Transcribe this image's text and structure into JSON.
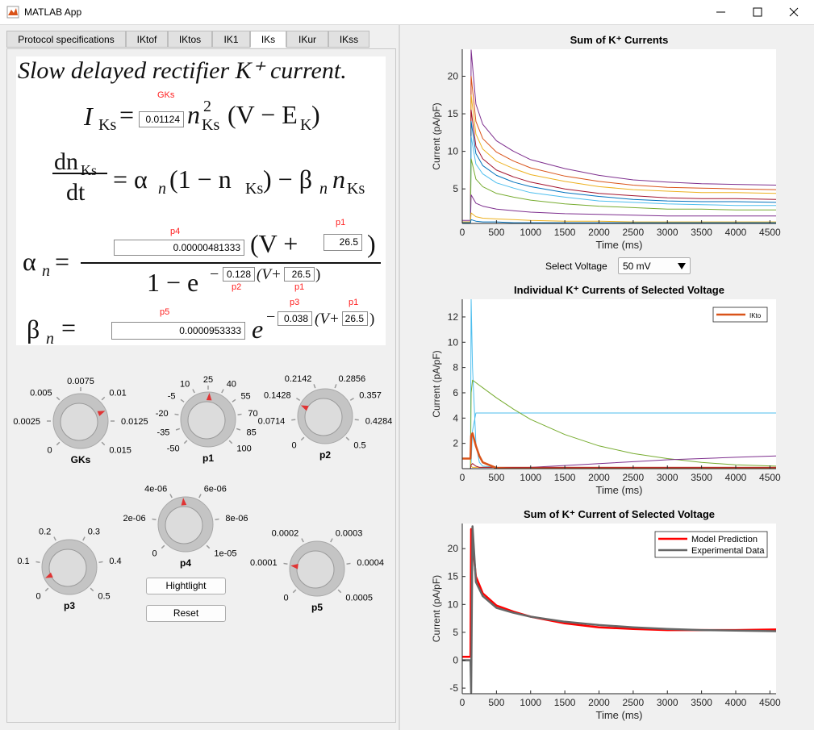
{
  "window": {
    "title": "MATLAB App"
  },
  "tabs": {
    "items": [
      "Protocol specifications",
      "IKtof",
      "IKtos",
      "IK1",
      "IKs",
      "IKur",
      "IKss"
    ],
    "selected": 4
  },
  "equations": {
    "heading": "Slow delayed rectifier K⁺ current.",
    "i_ks": [
      "I",
      "Ks",
      "=",
      "n",
      "2",
      "Ks",
      "(V − E",
      "K",
      ")"
    ],
    "dn_dt": [
      "dn",
      "Ks",
      "dt",
      "= α",
      "n",
      "(1 − n",
      "Ks",
      ") − β",
      "n",
      "n",
      "Ks"
    ],
    "alpha": [
      "α",
      "n",
      "=",
      "(V +",
      ")",
      "1 − e",
      "−",
      "(V+",
      ")"
    ],
    "beta": [
      "β",
      "n",
      "=",
      "e",
      "−",
      "(V+",
      ")"
    ]
  },
  "params": [
    {
      "name": "GKs",
      "value": 0.01124,
      "lim": [
        0,
        0.015
      ],
      "ticks": [
        0,
        0.0025,
        0.005,
        0.0075,
        0.01,
        0.0125,
        0.015
      ]
    },
    {
      "name": "p1",
      "value": 26.5,
      "lim": [
        -50,
        100
      ],
      "ticks": [
        -50,
        -35,
        -20,
        -5,
        10,
        25,
        40,
        55,
        70,
        85,
        100
      ]
    },
    {
      "name": "p2",
      "value": 0.128,
      "lim": [
        0,
        0.5
      ],
      "ticks": [
        0,
        0.0714,
        0.1428,
        0.2142,
        0.2856,
        0.357,
        0.4284,
        0.5
      ]
    },
    {
      "name": "p3",
      "value": 0.038,
      "lim": [
        0,
        0.5
      ],
      "ticks": [
        0,
        0.1,
        0.2,
        0.3,
        0.4,
        0.5
      ]
    },
    {
      "name": "p4",
      "value": 4.81333e-06,
      "lim": [
        0,
        1e-05
      ],
      "ticks": [
        0,
        {
          "value": 2e-06,
          "label": "2e-06"
        },
        {
          "value": 4e-06,
          "label": "4e-06"
        },
        {
          "value": 6e-06,
          "label": "6e-06"
        },
        {
          "value": 8e-06,
          "label": "8e-06"
        },
        {
          "value": 1e-05,
          "label": "1e-05"
        }
      ]
    },
    {
      "name": "p5",
      "value": 9.53333e-05,
      "lim": [
        0,
        0.0005
      ],
      "ticks": [
        0,
        0.0001,
        0.0002,
        0.0003,
        0.0004,
        0.0005
      ]
    }
  ],
  "buttons": [
    "Hightlight",
    "Reset"
  ],
  "select": {
    "label": "Select Voltage",
    "value": "50 mV"
  },
  "chart_data": [
    {
      "type": "line",
      "title": "Sum of K⁺ Currents",
      "xlabel": "Time (ms)",
      "ylabel": "Current (pA/pF)",
      "x": [
        0,
        120,
        130,
        200,
        300,
        500,
        750,
        1000,
        1500,
        2000,
        2500,
        3000,
        3500,
        4000,
        4590
      ],
      "xlim": [
        0,
        4590
      ],
      "xticks": [
        0,
        500,
        1000,
        1500,
        2000,
        2500,
        3000,
        3500,
        4000,
        4500
      ],
      "ylim": [
        0.4,
        23.6
      ],
      "yticks": [
        5,
        10,
        15,
        20
      ],
      "series": [
        {
          "color": "#7E2F8E",
          "values": [
            0.8,
            0.8,
            23.5,
            16.3,
            13.6,
            11.4,
            10.0,
            8.9,
            7.7,
            6.8,
            6.2,
            5.9,
            5.7,
            5.6,
            5.5
          ]
        },
        {
          "color": "#D95319",
          "values": [
            0.6,
            0.6,
            20,
            14.0,
            11.7,
            9.9,
            8.7,
            7.8,
            6.7,
            6.0,
            5.5,
            5.2,
            5.1,
            5.0,
            4.9
          ]
        },
        {
          "color": "#EDB120",
          "values": [
            0.6,
            0.6,
            17.5,
            12.3,
            10.3,
            8.7,
            7.7,
            6.9,
            6.0,
            5.3,
            4.9,
            4.7,
            4.5,
            4.5,
            4.4
          ]
        },
        {
          "color": "#A2142F",
          "values": [
            0.6,
            0.6,
            15.5,
            10.7,
            9.0,
            7.5,
            6.6,
            5.9,
            5.0,
            4.4,
            4.1,
            3.8,
            3.7,
            3.7,
            3.6
          ]
        },
        {
          "color": "#0072BD",
          "values": [
            0.6,
            0.6,
            14,
            9.7,
            8.1,
            6.8,
            5.9,
            5.3,
            4.5,
            4.0,
            3.6,
            3.4,
            3.3,
            3.3,
            3.2
          ]
        },
        {
          "color": "#4DBEEE",
          "values": [
            0.6,
            0.6,
            12,
            8.3,
            7.0,
            5.8,
            5.1,
            4.5,
            3.9,
            3.4,
            3.2,
            3.0,
            2.9,
            2.8,
            2.8
          ]
        },
        {
          "color": "#77AC30",
          "values": [
            0.6,
            0.6,
            9,
            6.3,
            5.3,
            4.4,
            3.9,
            3.5,
            3.0,
            2.7,
            2.5,
            2.3,
            2.3,
            2.2,
            2.2
          ]
        },
        {
          "color": "#7E2F8E",
          "values": [
            0.6,
            0.6,
            4.2,
            3.1,
            2.7,
            2.3,
            2.1,
            1.9,
            1.7,
            1.6,
            1.5,
            1.4,
            1.4,
            1.4,
            1.4
          ]
        },
        {
          "color": "#EDB120",
          "values": [
            0.6,
            0.6,
            1.8,
            1.3,
            1.1,
            1.0,
            0.9,
            0.8,
            0.7,
            0.7,
            0.6,
            0.6,
            0.6,
            0.6,
            0.6
          ]
        },
        {
          "color": "#0072BD",
          "values": [
            0.5,
            0.5,
            0.9,
            0.7,
            0.6,
            0.6,
            0.5,
            0.5,
            0.5,
            0.5,
            0.5,
            0.5,
            0.5,
            0.5,
            0.5
          ]
        }
      ]
    },
    {
      "type": "line",
      "title": "Individual K⁺ Currents of Selected Voltage",
      "xlabel": "Time (ms)",
      "ylabel": "Current (pA/pF)",
      "x": [
        0,
        120,
        130,
        150,
        200,
        250,
        300,
        500,
        750,
        1000,
        1500,
        2000,
        2500,
        3000,
        3500,
        4000,
        4590
      ],
      "xlim": [
        0,
        4590
      ],
      "xticks": [
        0,
        500,
        1000,
        1500,
        2000,
        2500,
        3000,
        3500,
        4000,
        4500
      ],
      "ylim": [
        0,
        13.4
      ],
      "yticks": [
        2,
        4,
        6,
        8,
        10,
        12
      ],
      "legend": "upper right",
      "series": [
        {
          "color": "#4DBEEE",
          "values": [
            0,
            0,
            13.4,
            8,
            2,
            0.5,
            0.2,
            0.1,
            0,
            0,
            0,
            0,
            0,
            0,
            0,
            0,
            0
          ]
        },
        {
          "color": "#4DBEEE",
          "values": [
            0,
            0,
            0.5,
            3,
            4.4,
            4.4,
            4.4,
            4.4,
            4.4,
            4.4,
            4.4,
            4.4,
            4.4,
            4.4,
            4.4,
            4.4,
            4.4
          ]
        },
        {
          "color": "#77AC30",
          "values": [
            0,
            0,
            6,
            7,
            6.8,
            6.6,
            6.4,
            5.6,
            4.7,
            3.9,
            2.7,
            1.8,
            1.2,
            0.8,
            0.5,
            0.3,
            0.2
          ]
        },
        {
          "color": "#7E2F8E",
          "values": [
            0,
            0,
            0,
            0,
            0,
            0,
            0,
            0,
            0.05,
            0.1,
            0.25,
            0.4,
            0.55,
            0.7,
            0.8,
            0.9,
            1.0
          ]
        },
        {
          "color": "#EDB120",
          "values": [
            0.8,
            0.8,
            0.2,
            0.1,
            0.1,
            0.1,
            0.1,
            0.1,
            0.1,
            0.1,
            0.1,
            0.1,
            0.1,
            0.1,
            0.1,
            0.1,
            0.1
          ]
        },
        {
          "color": "#A2142F",
          "values": [
            0,
            0,
            0.3,
            0.4,
            0.2,
            0.1,
            0.1,
            0.1,
            0.1,
            0.1,
            0.1,
            0.1,
            0.1,
            0.1,
            0.1,
            0.1,
            0.1
          ]
        },
        {
          "name": "IKto",
          "color": "#D95319",
          "values": [
            0.8,
            0.8,
            2.6,
            2.8,
            1.8,
            1.0,
            0.5,
            0.05,
            0,
            0,
            0,
            0,
            0,
            0,
            0,
            0,
            0
          ]
        }
      ]
    },
    {
      "type": "line",
      "title": "Sum of K⁺ Current of Selected Voltage",
      "xlabel": "Time (ms)",
      "ylabel": "Current (pA/pF)",
      "x": [
        0,
        120,
        130,
        150,
        200,
        300,
        500,
        750,
        1000,
        1500,
        2000,
        2500,
        3000,
        3500,
        4000,
        4590
      ],
      "xlim": [
        0,
        4590
      ],
      "xticks": [
        0,
        500,
        1000,
        1500,
        2000,
        2500,
        3000,
        3500,
        4000,
        4500
      ],
      "ylim": [
        -6,
        24.5
      ],
      "yticks": [
        -5,
        0,
        5,
        10,
        15,
        20
      ],
      "legend": "upper right",
      "series": [
        {
          "name": "Model Prediction",
          "color": "#FF0000",
          "values": [
            0.6,
            0.6,
            23.5,
            21,
            15,
            12,
            9.8,
            8.7,
            7.8,
            6.6,
            5.9,
            5.6,
            5.4,
            5.4,
            5.4,
            5.5
          ]
        },
        {
          "name": "Experimental Data",
          "color": "#666666",
          "values": [
            0,
            0,
            -5.8,
            24,
            14,
            11.5,
            9.4,
            8.5,
            7.8,
            6.9,
            6.3,
            5.9,
            5.6,
            5.4,
            5.3,
            5.2
          ]
        }
      ]
    }
  ]
}
